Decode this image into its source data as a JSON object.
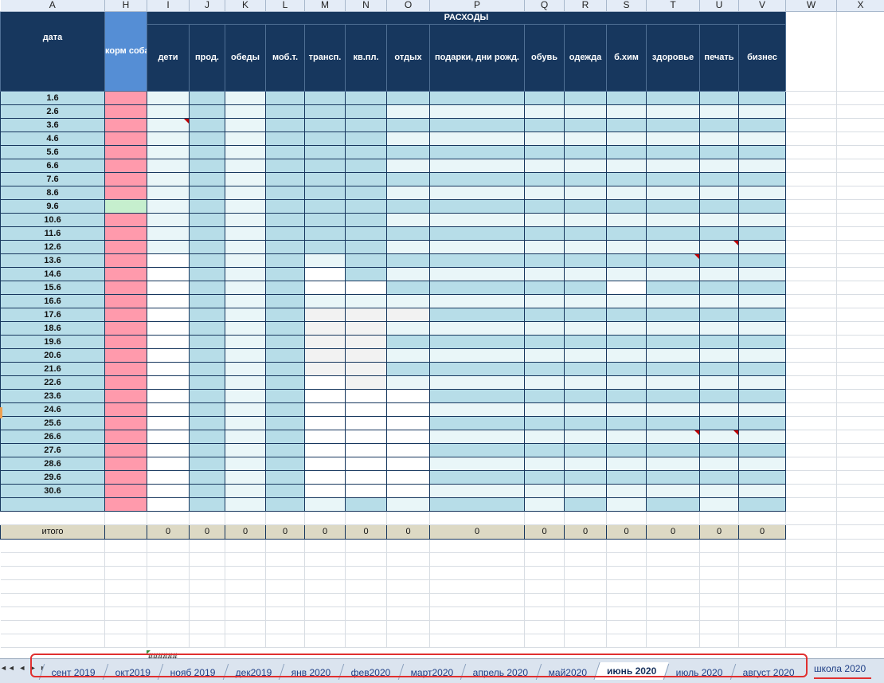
{
  "columns": [
    "A",
    "H",
    "I",
    "J",
    "K",
    "L",
    "M",
    "N",
    "O",
    "P",
    "Q",
    "R",
    "S",
    "T",
    "U",
    "V",
    "W",
    "X"
  ],
  "header": {
    "section_title": "РАСХОДЫ",
    "date_label": "дата",
    "dog_food_label": "корм собачий и аксессуары",
    "categories": [
      "дети",
      "прод.",
      "обеды",
      "моб.т.",
      "трансп.",
      "кв.пл.",
      "отдых",
      "подарки, дни рожд.",
      "обувь",
      "одежда",
      "б.хим",
      "здоровье",
      "печать",
      "бизнес"
    ]
  },
  "dates": [
    "1.6",
    "2.6",
    "3.6",
    "4.6",
    "5.6",
    "6.6",
    "7.6",
    "8.6",
    "9.6",
    "10.6",
    "11.6",
    "12.6",
    "13.6",
    "14.6",
    "15.6",
    "16.6",
    "17.6",
    "18.6",
    "19.6",
    "20.6",
    "21.6",
    "22.6",
    "23.6",
    "24.6",
    "25.6",
    "26.6",
    "27.6",
    "28.6",
    "29.6",
    "30.6"
  ],
  "totals": {
    "label": "итого",
    "values": [
      "0",
      "0",
      "0",
      "0",
      "0",
      "0",
      "0",
      "0",
      "0",
      "0",
      "0",
      "0",
      "0",
      "0"
    ]
  },
  "overflow_cell": "######",
  "sheet_tabs": {
    "tabs": [
      "сент 2019",
      "окт2019",
      "нояб 2019",
      "дек2019",
      "янв 2020",
      "фев2020",
      "март2020",
      "апрель 2020",
      "май2020",
      "июнь 2020",
      "июль 2020",
      "август 2020"
    ],
    "active": "июнь 2020",
    "extra_tab": "школа 2020",
    "nav_buttons": "◄◄ ◄ ► ►►"
  },
  "colors": {
    "header_bg": "#17375e",
    "dog_header_bg": "#558ed5",
    "dog_cell_bg": "#ff9aac",
    "cell_dark": "#b7dde8",
    "cell_light": "#e9f6f8",
    "total_bg": "#ddd9c4",
    "highlight_outline": "#e03030"
  }
}
